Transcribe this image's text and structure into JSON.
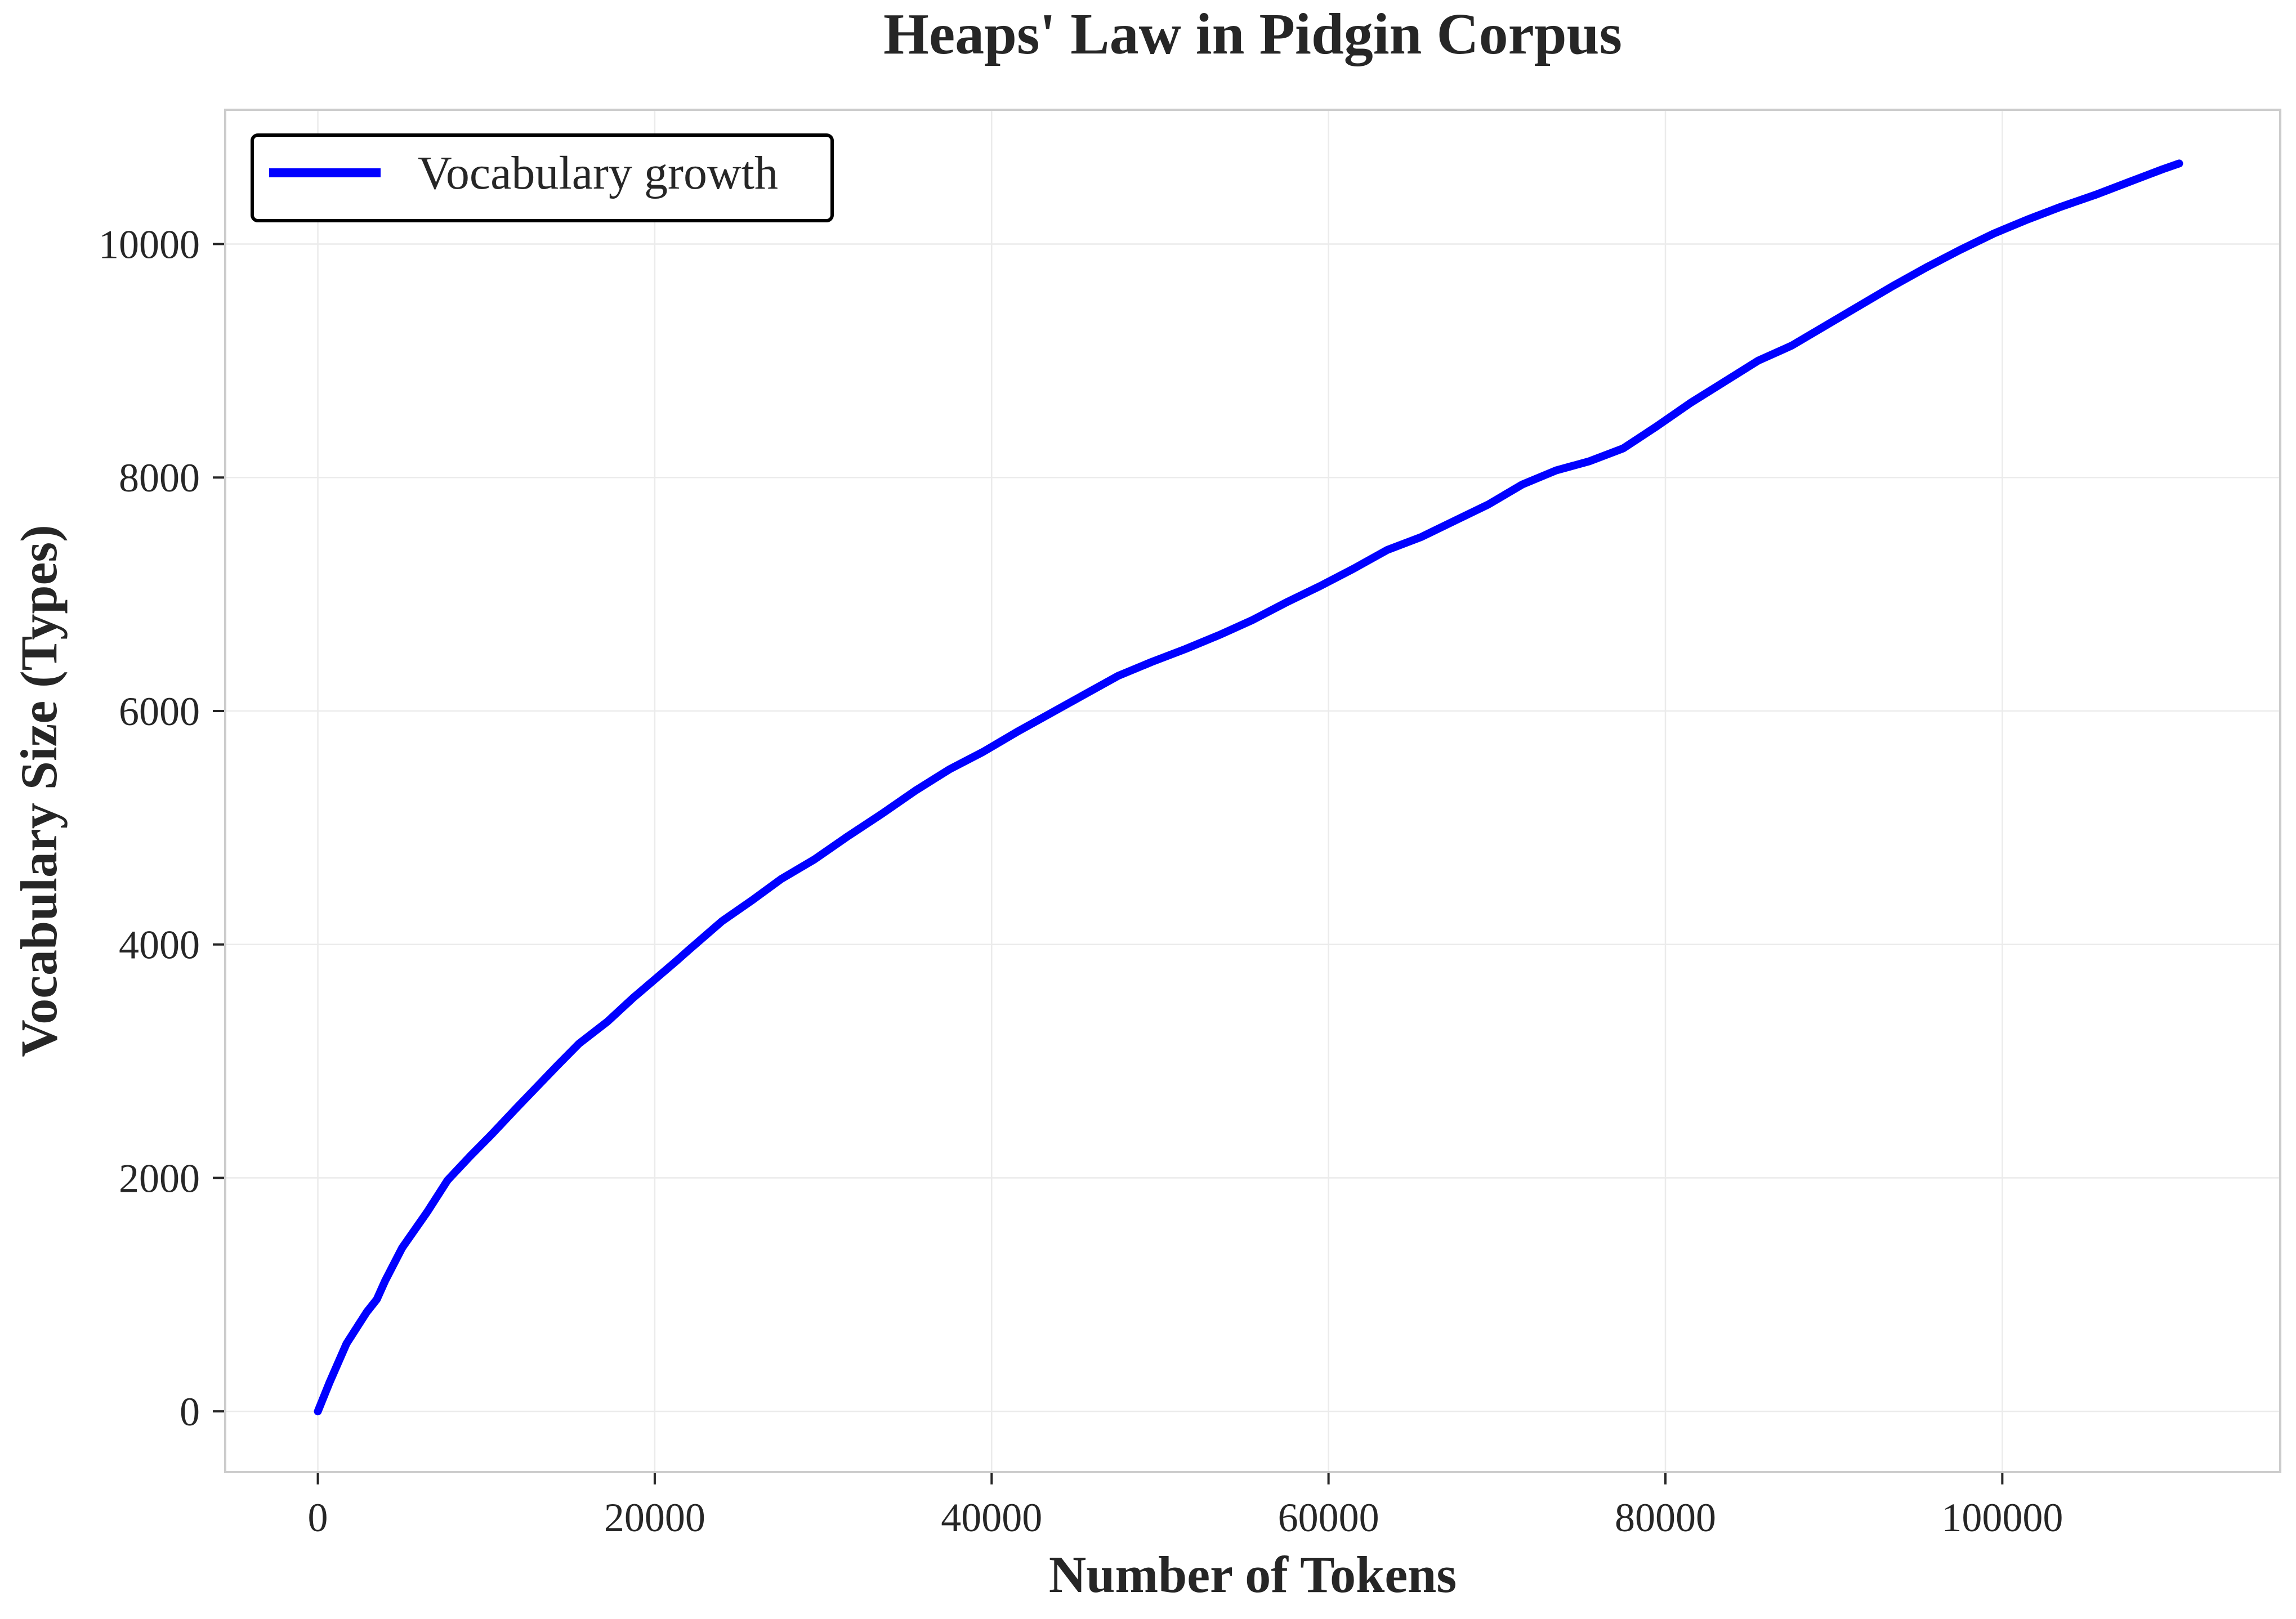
{
  "chart_data": {
    "type": "line",
    "title": "Heaps' Law in Pidgin Corpus",
    "xlabel": "Number of Tokens",
    "ylabel": "Vocabulary Size (Types)",
    "xlim": [
      -5500,
      116500
    ],
    "ylim": [
      -520,
      11150
    ],
    "x_ticks": [
      0,
      20000,
      40000,
      60000,
      80000,
      100000
    ],
    "y_ticks": [
      0,
      2000,
      4000,
      6000,
      8000,
      10000
    ],
    "grid": true,
    "legend_position": "top-left",
    "colors": {
      "series": "#0000ff",
      "text": "#262626",
      "grid": "#ebebeb",
      "frame": "#cccccc",
      "legend_border": "#000000"
    },
    "series": [
      {
        "name": "Vocabulary growth",
        "x": [
          0,
          700,
          1700,
          2900,
          3500,
          4000,
          5000,
          6500,
          7700,
          9000,
          10300,
          11800,
          13000,
          14200,
          15500,
          17200,
          18700,
          20000,
          21300,
          22000,
          24000,
          25800,
          27500,
          29500,
          31500,
          33500,
          35500,
          37500,
          39500,
          41500,
          43500,
          45500,
          47500,
          49500,
          51500,
          53500,
          55500,
          57500,
          59500,
          61500,
          63500,
          65500,
          67500,
          69500,
          71500,
          73500,
          75500,
          77500,
          79500,
          81500,
          83500,
          85500,
          87500,
          89500,
          91500,
          93500,
          95500,
          97500,
          99500,
          101500,
          103500,
          105500,
          107500,
          109500,
          110500
        ],
        "values": [
          0,
          250,
          580,
          850,
          960,
          1120,
          1400,
          1710,
          1980,
          2180,
          2370,
          2600,
          2780,
          2960,
          3150,
          3340,
          3540,
          3700,
          3860,
          3950,
          4200,
          4380,
          4560,
          4730,
          4930,
          5120,
          5320,
          5500,
          5650,
          5820,
          5980,
          6140,
          6300,
          6420,
          6530,
          6650,
          6780,
          6930,
          7070,
          7220,
          7380,
          7490,
          7630,
          7770,
          7940,
          8060,
          8140,
          8250,
          8440,
          8640,
          8820,
          9000,
          9130,
          9300,
          9470,
          9640,
          9800,
          9950,
          10090,
          10210,
          10320,
          10420,
          10530,
          10640,
          10690
        ]
      }
    ]
  }
}
